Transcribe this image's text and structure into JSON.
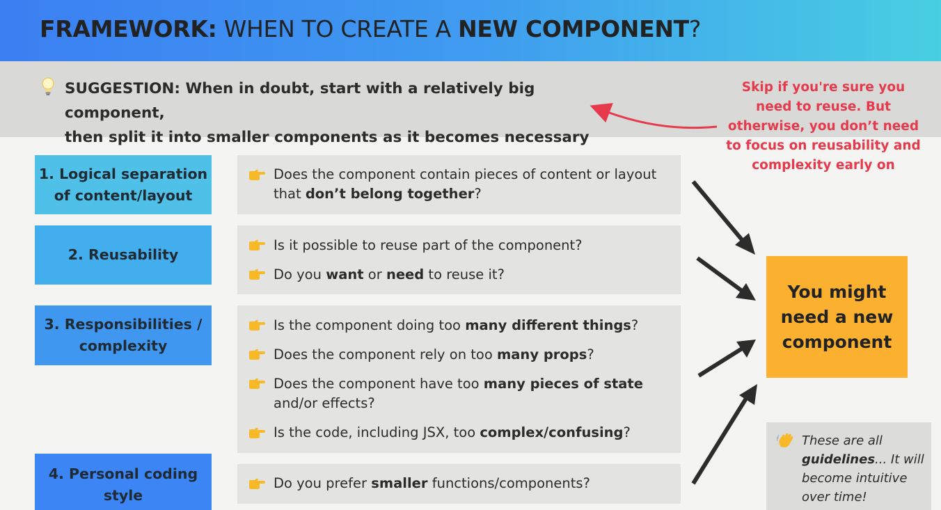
{
  "header": {
    "title_bold1": "FRAMEWORK:",
    "title_light": " WHEN TO CREATE A ",
    "title_bold2": "NEW COMPONENT",
    "title_end": "?"
  },
  "suggestion": {
    "label": "SUGGESTION:",
    "line1": " When in doubt, start with a relatively big component,",
    "line2": "then split it into smaller components as it becomes necessary"
  },
  "side_note": {
    "text": "Skip if you're sure you need to reuse. But otherwise, you don’t need to focus on reusability and complexity early on",
    "color": "#e63a4c"
  },
  "categories": [
    {
      "label": "1. Logical separation of content/layout",
      "color": "#4fc1e9"
    },
    {
      "label": "2. Reusability",
      "color": "#43aeee"
    },
    {
      "label": "3. Responsibilities / complexity",
      "color": "#3f97f0"
    },
    {
      "label": "4. Personal coding style",
      "color": "#3b85f4"
    }
  ],
  "questions": {
    "q1": {
      "pre": "Does the component contain pieces of content or layout that ",
      "bold": "don’t belong together",
      "post": "?"
    },
    "q2a": {
      "text": "Is it possible to reuse part of the component?"
    },
    "q2b": {
      "pre": "Do you ",
      "bold1": "want",
      "mid": " or ",
      "bold2": "need",
      "post": " to reuse it?"
    },
    "q3a": {
      "pre": "Is the component doing too ",
      "bold": "many different things",
      "post": "?"
    },
    "q3b": {
      "pre": "Does the component rely on too ",
      "bold": "many props",
      "post": "?"
    },
    "q3c": {
      "pre": "Does the component have too ",
      "bold": "many pieces of state",
      "post": " and/or effects?"
    },
    "q3d": {
      "pre": "Is the code, including JSX, too ",
      "bold": "complex/confusing",
      "post": "?"
    },
    "q4": {
      "pre": "Do you prefer ",
      "bold": "smaller",
      "post": " functions/components?"
    }
  },
  "result": {
    "text": "You might need a new component",
    "color": "#fbb12f"
  },
  "guideline_note": {
    "pre": "These are all ",
    "bold": "guidelines",
    "post": "... It will become intuitive over time!"
  },
  "icons": [
    "lightbulb-icon",
    "pointing-hand-icon",
    "waving-hand-icon",
    "arrow-icon"
  ]
}
